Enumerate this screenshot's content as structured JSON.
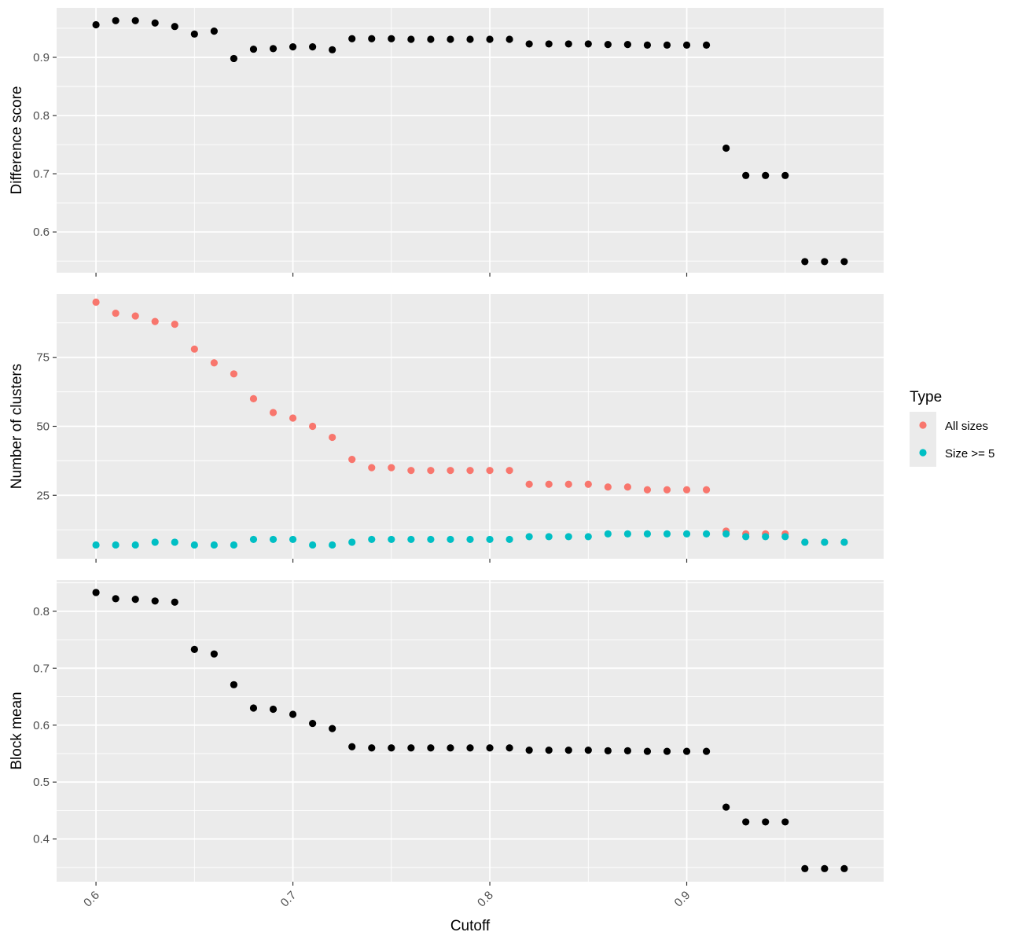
{
  "chart_data": {
    "type": "scatter",
    "x": [
      0.6,
      0.61,
      0.62,
      0.63,
      0.64,
      0.65,
      0.66,
      0.67,
      0.68,
      0.69,
      0.7,
      0.71,
      0.72,
      0.73,
      0.74,
      0.75,
      0.76,
      0.77,
      0.78,
      0.79,
      0.8,
      0.81,
      0.82,
      0.83,
      0.84,
      0.85,
      0.86,
      0.87,
      0.88,
      0.89,
      0.9,
      0.91,
      0.92,
      0.93,
      0.94,
      0.95,
      0.96,
      0.97,
      0.98
    ],
    "xlabel": "Cutoff",
    "xlim": [
      0.58,
      1.0
    ],
    "xticks": [
      0.6,
      0.7,
      0.8,
      0.9
    ],
    "xtick_labels": [
      "0.6",
      "0.7",
      "0.8",
      "0.9"
    ],
    "grid": true,
    "legend": {
      "title": "Type",
      "placement": "right",
      "entries": [
        {
          "label": "All sizes",
          "color": "#F8766D"
        },
        {
          "label": "Size >= 5",
          "color": "#00BFC4"
        }
      ]
    },
    "panels": [
      {
        "ylabel": "Difference score",
        "ylim": [
          0.53,
          0.985
        ],
        "yticks": [
          0.6,
          0.7,
          0.8,
          0.9
        ],
        "ytick_labels": [
          "0.6",
          "0.7",
          "0.8",
          "0.9"
        ],
        "series": [
          {
            "color": "#000000",
            "values": [
              0.956,
              0.963,
              0.963,
              0.959,
              0.953,
              0.94,
              0.945,
              0.898,
              0.914,
              0.915,
              0.918,
              0.918,
              0.913,
              0.932,
              0.932,
              0.932,
              0.931,
              0.931,
              0.931,
              0.931,
              0.931,
              0.931,
              0.923,
              0.923,
              0.923,
              0.923,
              0.922,
              0.922,
              0.921,
              0.921,
              0.921,
              0.921,
              0.744,
              0.697,
              0.697,
              0.697,
              0.549,
              0.549,
              0.549
            ]
          }
        ]
      },
      {
        "ylabel": "Number of clusters",
        "ylim": [
          2,
          98
        ],
        "yticks": [
          25,
          50,
          75
        ],
        "ytick_labels": [
          "25",
          "50",
          "75"
        ],
        "series": [
          {
            "name": "All sizes",
            "color": "#F8766D",
            "values": [
              95,
              91,
              90,
              88,
              87,
              78,
              73,
              69,
              60,
              55,
              53,
              50,
              46,
              38,
              35,
              35,
              34,
              34,
              34,
              34,
              34,
              34,
              29,
              29,
              29,
              29,
              28,
              28,
              27,
              27,
              27,
              27,
              12,
              11,
              11,
              11,
              8,
              8,
              8
            ]
          },
          {
            "name": "Size >= 5",
            "color": "#00BFC4",
            "values": [
              7,
              7,
              7,
              8,
              8,
              7,
              7,
              7,
              9,
              9,
              9,
              7,
              7,
              8,
              9,
              9,
              9,
              9,
              9,
              9,
              9,
              9,
              10,
              10,
              10,
              10,
              11,
              11,
              11,
              11,
              11,
              11,
              11,
              10,
              10,
              10,
              8,
              8,
              8
            ]
          }
        ]
      },
      {
        "ylabel": "Block mean",
        "ylim": [
          0.325,
          0.855
        ],
        "yticks": [
          0.4,
          0.5,
          0.6,
          0.7,
          0.8
        ],
        "ytick_labels": [
          "0.4",
          "0.5",
          "0.6",
          "0.7",
          "0.8"
        ],
        "series": [
          {
            "color": "#000000",
            "values": [
              0.833,
              0.822,
              0.821,
              0.818,
              0.816,
              0.733,
              0.725,
              0.671,
              0.63,
              0.628,
              0.619,
              0.603,
              0.594,
              0.562,
              0.56,
              0.56,
              0.56,
              0.56,
              0.56,
              0.56,
              0.56,
              0.56,
              0.556,
              0.556,
              0.556,
              0.556,
              0.555,
              0.555,
              0.554,
              0.554,
              0.554,
              0.554,
              0.456,
              0.43,
              0.43,
              0.43,
              0.348,
              0.348,
              0.348
            ]
          }
        ]
      }
    ]
  }
}
